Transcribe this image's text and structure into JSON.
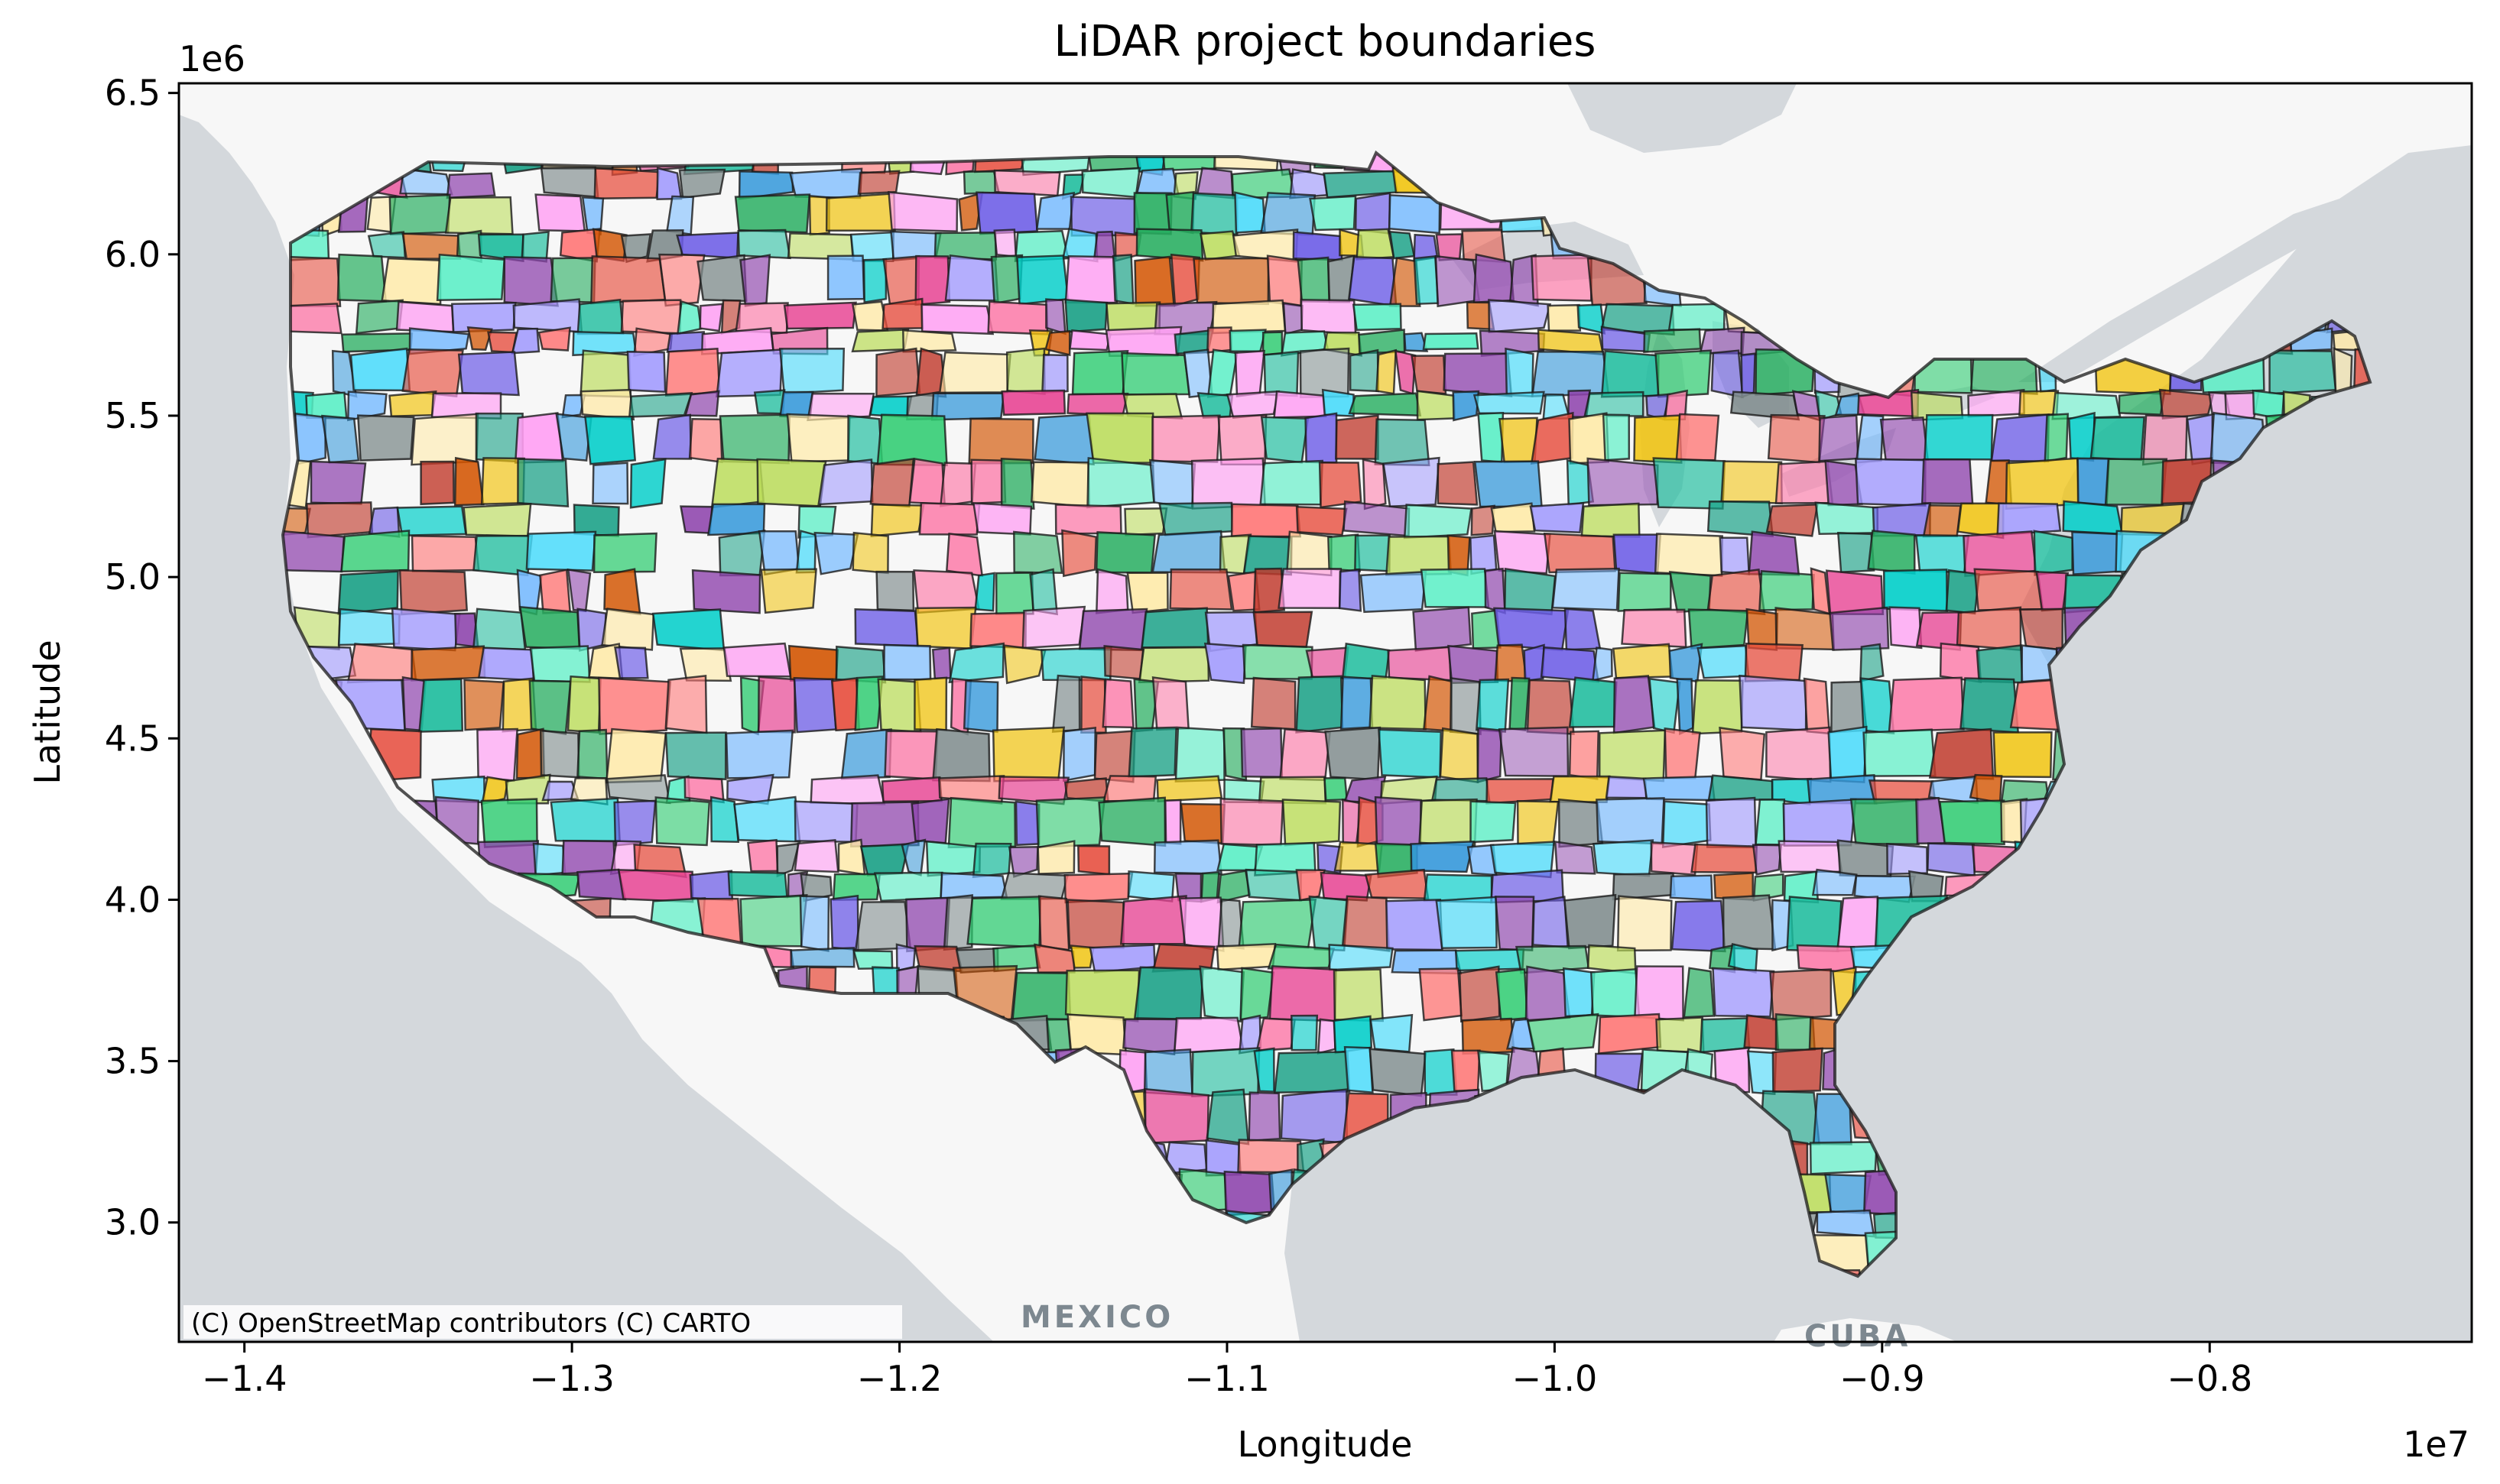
{
  "title": "LiDAR project boundaries",
  "xlabel": "Longitude",
  "ylabel": "Latitude",
  "x_offset": "1e7",
  "y_offset": "1e6",
  "attribution": "(C) OpenStreetMap contributors (C) CARTO",
  "basemap_labels": {
    "mexico": "MEXICO",
    "cuba": "CUBA"
  },
  "colors": {
    "land": "#f7f7f7",
    "water": "#d4d8dc",
    "boundary_stroke": "#1a1a1a",
    "patch_palette": [
      "#8e44ad",
      "#2ecc71",
      "#e74c3c",
      "#3498db",
      "#f1c40f",
      "#1abc9c",
      "#e84393",
      "#6c5ce7",
      "#00cec9",
      "#fd79a8",
      "#55efc4",
      "#a29bfe",
      "#ffeaa7",
      "#ff7675",
      "#74b9ff",
      "#badc58",
      "#c0392b",
      "#16a085",
      "#d35400",
      "#7f8c8d",
      "#9b59b6",
      "#27ae60",
      "#ff9ff3",
      "#48dbfb"
    ]
  },
  "chart_data": {
    "type": "map",
    "title": "LiDAR project boundaries",
    "xlabel": "Longitude",
    "ylabel": "Latitude",
    "xlim": [
      -14200000,
      -7200000
    ],
    "ylim": [
      2630000,
      6530000
    ],
    "xticks": [
      -1.4,
      -1.3,
      -1.2,
      -1.1,
      -1.0,
      -0.9,
      -0.8
    ],
    "xtick_labels": [
      "−1.4",
      "−1.3",
      "−1.2",
      "−1.1",
      "−1.0",
      "−0.9",
      "−0.8"
    ],
    "yticks": [
      3.0,
      3.5,
      4.0,
      4.5,
      5.0,
      5.5,
      6.0,
      6.5
    ],
    "ytick_labels": [
      "3.0",
      "3.5",
      "4.0",
      "4.5",
      "5.0",
      "5.5",
      "6.0",
      "6.5"
    ],
    "x_offset_text": "1e7",
    "y_offset_text": "1e6",
    "grid": false,
    "legend": "none",
    "basemap": "CARTO light (OpenStreetMap)",
    "overlay": "semi-transparent randomly colored LiDAR project polygons covering the contiguous United States"
  }
}
